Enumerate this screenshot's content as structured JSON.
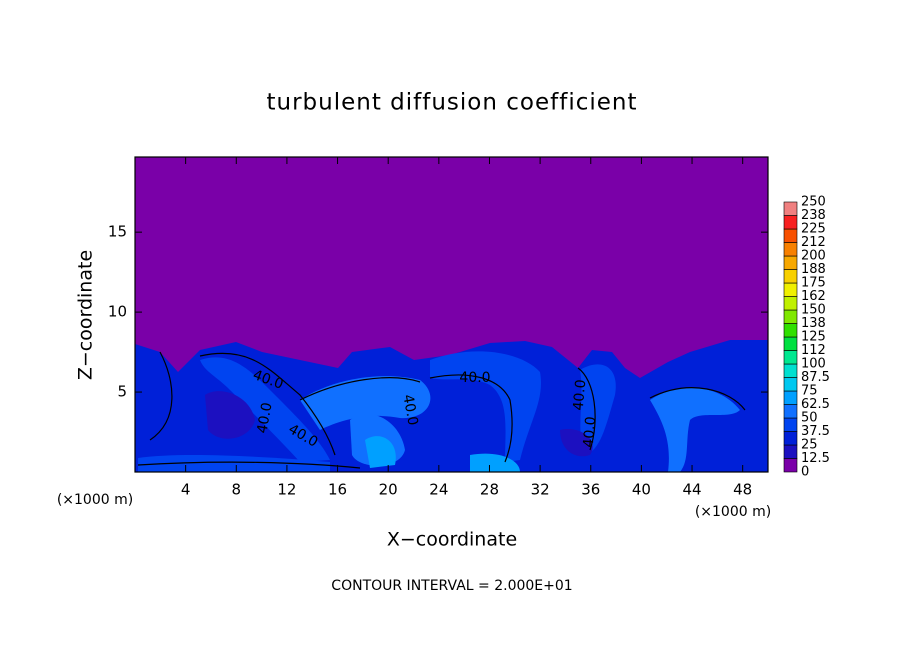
{
  "chart_data": {
    "type": "contour",
    "title": "turbulent diffusion coefficient",
    "xlabel": "X−coordinate",
    "ylabel": "Z−coordinate",
    "x_unit_label": "(×1000 m)",
    "footer": "CONTOUR INTERVAL = 2.000E+01",
    "xlim": [
      0,
      50
    ],
    "ylim": [
      0,
      19.7
    ],
    "xticks": [
      4,
      8,
      12,
      16,
      20,
      24,
      28,
      32,
      36,
      40,
      44,
      48
    ],
    "yticks": [
      5,
      10,
      15
    ],
    "contour_labels": [
      "40.0",
      "40.0",
      "40.0",
      "40.0",
      "40.0",
      "40.0",
      "40.0"
    ],
    "colorbar": {
      "levels": [
        0,
        12.5,
        25,
        37.5,
        50,
        62.5,
        75,
        87.5,
        100,
        {
          "value": 112.5,
          "label": "112"
        },
        125,
        {
          "value": 137.5,
          "label": "138"
        },
        150,
        {
          "value": 162.5,
          "label": "162"
        },
        175,
        {
          "value": 187.5,
          "label": "188"
        },
        200,
        {
          "value": 212.5,
          "label": "212"
        },
        225,
        {
          "value": 237.5,
          "label": "238"
        },
        250
      ],
      "colors": [
        "#7a00a8",
        "#1c10c0",
        "#0020d8",
        "#0044f0",
        "#1070ff",
        "#00a0ff",
        "#00c8f0",
        "#00e0d0",
        "#00e890",
        "#00e040",
        "#30e000",
        "#80e800",
        "#c0f000",
        "#f0f000",
        "#f8d000",
        "#f8a800",
        "#f88000",
        "#f85000",
        "#f82020",
        "#f08080"
      ]
    }
  }
}
